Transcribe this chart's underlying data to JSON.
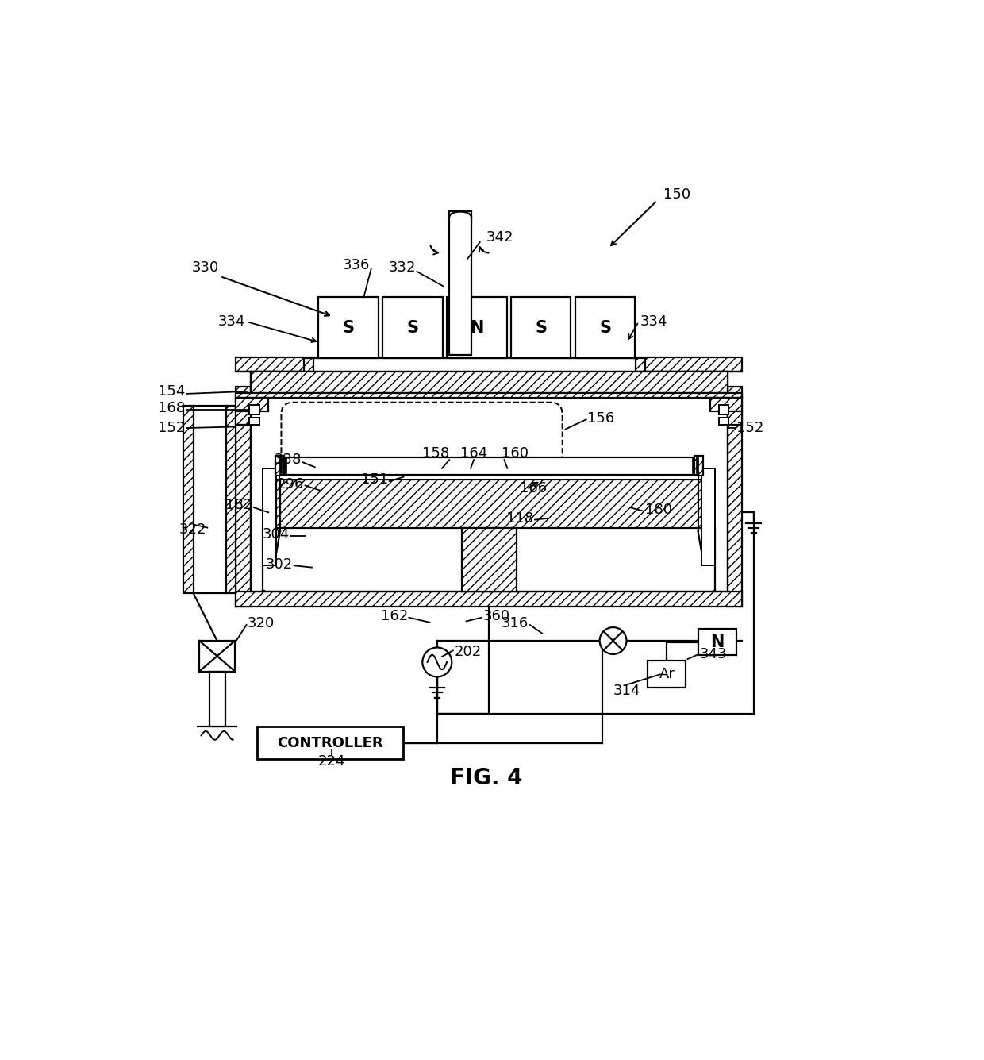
{
  "bg": "#ffffff",
  "lc": "#000000",
  "fig_label": "FIG. 4",
  "magnet_labels": [
    "S",
    "S",
    "N",
    "S",
    "S"
  ]
}
